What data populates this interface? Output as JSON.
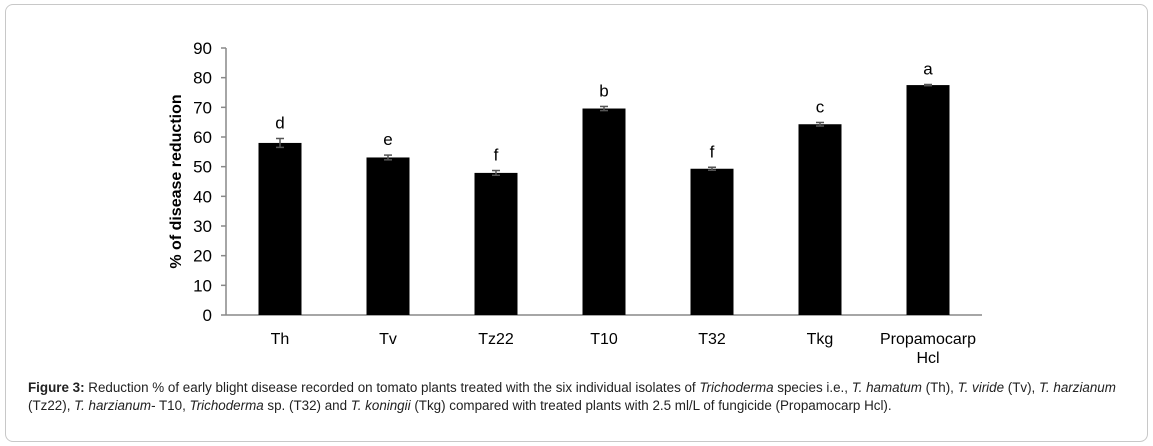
{
  "chart_data": {
    "type": "bar",
    "title": "",
    "xlabel": "",
    "ylabel": "% of disease reduction",
    "ylim": [
      0,
      90
    ],
    "yticks": [
      0,
      10,
      20,
      30,
      40,
      50,
      60,
      70,
      80,
      90
    ],
    "categories": [
      "Th",
      "Tv",
      "Tz22",
      "T10",
      "T32",
      "Tkg",
      "Propamocarp Hcl"
    ],
    "values": [
      58.0,
      53.1,
      47.9,
      69.6,
      49.3,
      64.3,
      77.5
    ],
    "errors": [
      1.5,
      0.8,
      0.8,
      0.7,
      0.5,
      0.6,
      0.2
    ],
    "letters": [
      "d",
      "e",
      "f",
      "b",
      "f",
      "c",
      "a"
    ],
    "bar_color": "#000000",
    "grid": false
  },
  "caption": {
    "label": "Figure 3:",
    "parts": [
      {
        "t": " Reduction % of early blight disease recorded on tomato plants treated with the six individual isolates of ",
        "i": false
      },
      {
        "t": "Trichoderma",
        "i": true
      },
      {
        "t": " species i.e., ",
        "i": false
      },
      {
        "t": "T. hamatum",
        "i": true
      },
      {
        "t": " (Th), ",
        "i": false
      },
      {
        "t": "T. viride",
        "i": true
      },
      {
        "t": " (Tv), ",
        "i": false
      },
      {
        "t": "T. harzianum",
        "i": true
      },
      {
        "t": " (Tz22), ",
        "i": false
      },
      {
        "t": "T. harzianum",
        "i": true
      },
      {
        "t": "- T10, ",
        "i": false
      },
      {
        "t": "Trichoderma",
        "i": true
      },
      {
        "t": " sp. (T32) and ",
        "i": false
      },
      {
        "t": "T. koningii",
        "i": true
      },
      {
        "t": " (Tkg) compared with treated plants with 2.5 ml/L of fungicide (Propamocarp Hcl).",
        "i": false
      }
    ]
  }
}
